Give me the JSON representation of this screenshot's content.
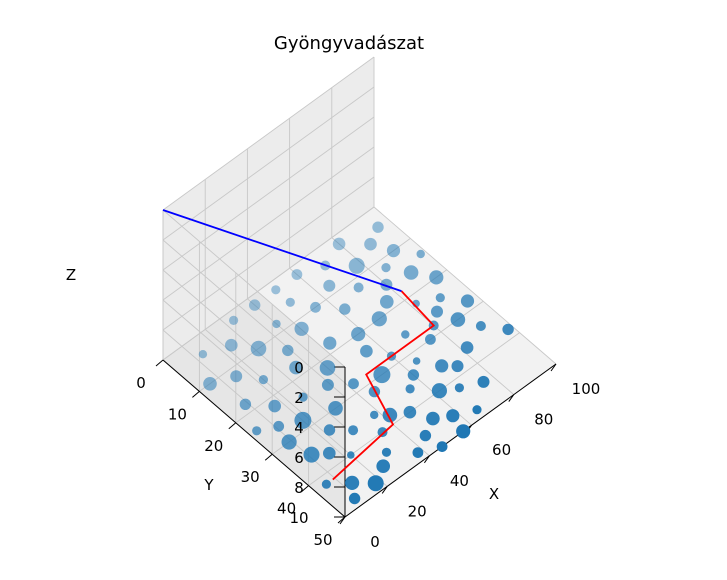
{
  "chart_data": {
    "type": "scatter3d",
    "title": "Gyöngyvadászat",
    "xlabel": "X",
    "ylabel": "Y",
    "zlabel": "Z",
    "xlim": [
      0,
      100
    ],
    "ylim": [
      0,
      50
    ],
    "zlim": [
      10,
      0
    ],
    "z_inverted": true,
    "x_ticks": [
      "0",
      "20",
      "40",
      "60",
      "80",
      "100"
    ],
    "y_ticks": [
      "0",
      "10",
      "20",
      "30",
      "40",
      "50"
    ],
    "z_ticks": [
      "0",
      "2",
      "4",
      "6",
      "8",
      "10"
    ],
    "grid": true,
    "colors": {
      "points": "#1f77b4",
      "path": "#ff0000",
      "line": "#0000ff"
    },
    "series": [
      {
        "type": "scatter",
        "points": [
          [
            8,
            30,
            10
          ],
          [
            15,
            37,
            10
          ],
          [
            5,
            42,
            10
          ],
          [
            12,
            45,
            10
          ],
          [
            20,
            40,
            10
          ],
          [
            10,
            35,
            10
          ],
          [
            22,
            33,
            10
          ],
          [
            18,
            28,
            10
          ],
          [
            28,
            36,
            10
          ],
          [
            30,
            30,
            10
          ],
          [
            35,
            25,
            10
          ],
          [
            25,
            24,
            10
          ],
          [
            32,
            18,
            10
          ],
          [
            40,
            22,
            10
          ],
          [
            42,
            28,
            10
          ],
          [
            45,
            32,
            10
          ],
          [
            38,
            36,
            10
          ],
          [
            48,
            18,
            10
          ],
          [
            55,
            24,
            10
          ],
          [
            52,
            30,
            10
          ],
          [
            60,
            28,
            10
          ],
          [
            58,
            20,
            10
          ],
          [
            62,
            14,
            10
          ],
          [
            68,
            20,
            10
          ],
          [
            70,
            26,
            10
          ],
          [
            75,
            18,
            10
          ],
          [
            72,
            12,
            10
          ],
          [
            80,
            15,
            10
          ],
          [
            78,
            8,
            10
          ],
          [
            85,
            12,
            10
          ],
          [
            88,
            6,
            10
          ],
          [
            90,
            16,
            10
          ],
          [
            82,
            22,
            10
          ],
          [
            92,
            10,
            10
          ],
          [
            95,
            4,
            10
          ],
          [
            65,
            8,
            10
          ],
          [
            55,
            10,
            10
          ],
          [
            50,
            6,
            10
          ],
          [
            45,
            12,
            10
          ],
          [
            40,
            8,
            10
          ],
          [
            35,
            14,
            10
          ],
          [
            28,
            10,
            10
          ],
          [
            20,
            16,
            10
          ],
          [
            15,
            22,
            10
          ],
          [
            10,
            26,
            10
          ],
          [
            25,
            46,
            10
          ],
          [
            30,
            44,
            10
          ],
          [
            18,
            48,
            10
          ],
          [
            8,
            48,
            10
          ],
          [
            35,
            40,
            10
          ],
          [
            42,
            38,
            10
          ],
          [
            48,
            40,
            10
          ],
          [
            55,
            36,
            10
          ],
          [
            60,
            34,
            10
          ],
          [
            65,
            32,
            10
          ],
          [
            70,
            36,
            10
          ],
          [
            75,
            30,
            10
          ],
          [
            80,
            28,
            10
          ],
          [
            85,
            26,
            10
          ],
          [
            90,
            24,
            10
          ],
          [
            95,
            20,
            10
          ],
          [
            98,
            14,
            10
          ],
          [
            52,
            44,
            10
          ],
          [
            45,
            46,
            10
          ],
          [
            62,
            40,
            10
          ],
          [
            68,
            42,
            10
          ],
          [
            74,
            38,
            10
          ],
          [
            58,
            46,
            10
          ],
          [
            38,
            48,
            10
          ],
          [
            30,
            2,
            10
          ],
          [
            22,
            6,
            10
          ],
          [
            12,
            4,
            10
          ],
          [
            5,
            10,
            10
          ],
          [
            8,
            18,
            10
          ],
          [
            3,
            24,
            10
          ],
          [
            14,
            12,
            10
          ],
          [
            60,
            2,
            10
          ],
          [
            70,
            4,
            10
          ],
          [
            80,
            2,
            10
          ],
          [
            50,
            2,
            10
          ],
          [
            40,
            2,
            10
          ],
          [
            88,
            30,
            10
          ],
          [
            92,
            34,
            10
          ],
          [
            82,
            36,
            10
          ],
          [
            76,
            44,
            10
          ],
          [
            66,
            48,
            10
          ],
          [
            56,
            50,
            10
          ],
          [
            46,
            50,
            10
          ],
          [
            96,
            28,
            10
          ],
          [
            98,
            38,
            10
          ]
        ],
        "sizes": [
          160,
          110,
          60,
          140,
          40,
          180,
          90,
          200,
          70,
          150,
          100,
          60,
          130,
          170,
          80,
          90,
          50,
          120,
          110,
          200,
          60,
          140,
          90,
          160,
          50,
          130,
          70,
          100,
          180,
          60,
          110,
          150,
          40,
          120,
          90,
          100,
          80,
          60,
          140,
          50,
          90,
          170,
          60,
          110,
          80,
          130,
          60,
          180,
          90,
          70,
          150,
          110,
          60,
          90,
          40,
          120,
          80,
          70,
          100,
          60,
          140,
          50,
          130,
          90,
          160,
          60,
          100,
          120,
          80,
          60,
          110,
          50,
          130,
          90,
          60,
          100,
          80,
          70,
          110,
          60,
          90,
          150,
          70,
          110,
          100,
          60,
          140,
          80,
          120,
          90
        ]
      },
      {
        "type": "line",
        "name": "",
        "points": [
          [
            8,
            42,
            10
          ],
          [
            40,
            40,
            10
          ],
          [
            48,
            28,
            10
          ],
          [
            80,
            28,
            10
          ],
          [
            82,
            18,
            10
          ]
        ]
      },
      {
        "type": "line",
        "name": "",
        "points": [
          [
            0,
            0,
            0
          ],
          [
            82,
            18,
            10
          ]
        ]
      }
    ]
  }
}
